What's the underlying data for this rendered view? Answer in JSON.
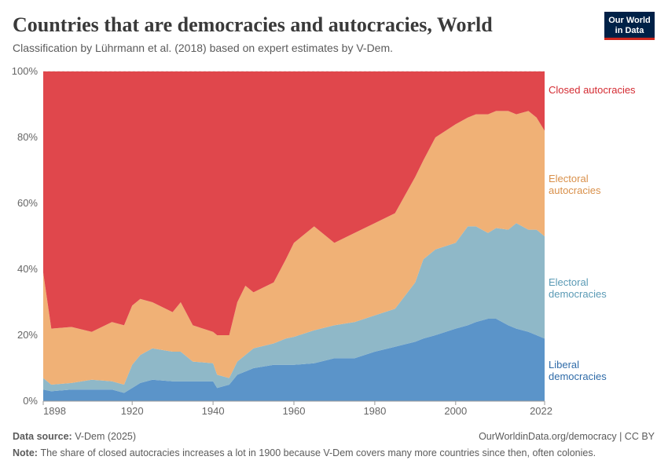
{
  "logo": "Our World in Data",
  "chart_data": {
    "type": "stacked_area",
    "title": "Countries that are democracies and autocracies, World",
    "subtitle": "Classification by Lührmann et al. (2018) based on expert estimates by V-Dem.",
    "source_label": "Data source:",
    "source": "V-Dem (2025)",
    "url": "OurWorldinData.org/democracy | CC BY",
    "note_label": "Note:",
    "note": "The share of closed autocracies increases a lot in 1900 because V-Dem covers many more countries since then, often colonies.",
    "x": [
      1898,
      1900,
      1905,
      1910,
      1915,
      1918,
      1920,
      1922,
      1925,
      1930,
      1932,
      1935,
      1940,
      1941,
      1944,
      1946,
      1948,
      1950,
      1955,
      1958,
      1960,
      1965,
      1970,
      1975,
      1980,
      1985,
      1990,
      1992,
      1995,
      2000,
      2003,
      2005,
      2008,
      2010,
      2013,
      2015,
      2018,
      2020,
      2022
    ],
    "xlim": [
      1898,
      2022
    ],
    "xticks": [
      1898,
      1920,
      1940,
      1960,
      1980,
      2000,
      2022
    ],
    "ylim": [
      0,
      100
    ],
    "yticks": [
      {
        "value": 0,
        "label": "0%"
      },
      {
        "value": 20,
        "label": "20%"
      },
      {
        "value": 40,
        "label": "40%"
      },
      {
        "value": 60,
        "label": "60%"
      },
      {
        "value": 80,
        "label": "80%"
      },
      {
        "value": 100,
        "label": "100%"
      }
    ],
    "grid": true,
    "series": [
      {
        "name": "Liberal democracies",
        "color": "#5b94c9",
        "label_color": "#2f6ba8",
        "values": [
          3.5,
          3,
          3.5,
          3.5,
          3.5,
          2.5,
          4,
          5.5,
          6.5,
          6,
          6,
          6,
          6,
          4,
          5,
          8,
          9,
          10,
          11,
          11,
          11,
          11.5,
          13,
          13,
          15,
          16.5,
          18,
          19,
          20,
          22,
          23,
          24,
          25,
          25,
          23,
          22,
          21,
          20,
          19
        ]
      },
      {
        "name": "Electoral democracies",
        "color": "#8fb8c8",
        "label_color": "#5a9ab5",
        "values": [
          3.5,
          2,
          2,
          3,
          2.5,
          2.5,
          7,
          8.5,
          9.5,
          9,
          9,
          6,
          5.5,
          4,
          2,
          4,
          5,
          6,
          6.5,
          8,
          8.5,
          10,
          10,
          11,
          11,
          11.5,
          18,
          24,
          26,
          26,
          30,
          29,
          26,
          27.5,
          29,
          32,
          31,
          32,
          31
        ]
      },
      {
        "name": "Electoral autocracies",
        "color": "#f0b176",
        "label_color": "#d9904a",
        "values": [
          32,
          17,
          17,
          14.5,
          18,
          18,
          18,
          17,
          14,
          12,
          15,
          11,
          9.5,
          12,
          13,
          18,
          21,
          17,
          18.5,
          24,
          28.5,
          31.5,
          25,
          27,
          28,
          29,
          32,
          30,
          34,
          36,
          33,
          34,
          36,
          35.5,
          36,
          33,
          36,
          34,
          32
        ]
      },
      {
        "name": "Closed autocracies",
        "color": "#e0474c",
        "label_color": "#d42b32",
        "values": [
          61,
          78,
          77.5,
          79,
          76,
          77,
          71,
          69,
          70,
          73,
          70,
          77,
          79,
          80,
          80,
          70,
          65,
          67,
          64,
          57,
          52,
          47,
          52,
          49,
          46,
          43,
          32,
          27,
          20,
          16,
          14,
          13,
          13,
          12,
          12,
          13,
          12,
          14,
          18
        ]
      }
    ]
  }
}
